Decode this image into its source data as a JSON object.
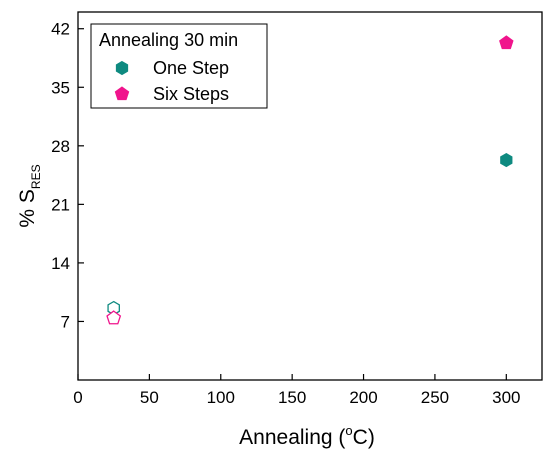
{
  "chart_data": {
    "type": "scatter",
    "title": "",
    "xlabel": {
      "prefix": "Annealing (",
      "sup": "o",
      "suffix": "C)"
    },
    "ylabel": {
      "prefix": "% S",
      "sub": "RES"
    },
    "xlim": [
      0,
      325
    ],
    "ylim": [
      0,
      44
    ],
    "xticks": [
      "0",
      "50",
      "100",
      "150",
      "200",
      "250",
      "300"
    ],
    "xtick_values": [
      0,
      50,
      100,
      150,
      200,
      250,
      300
    ],
    "yticks": [
      "7",
      "14",
      "21",
      "28",
      "35",
      "42"
    ],
    "ytick_values": [
      7,
      14,
      21,
      28,
      35,
      42
    ],
    "grid": false,
    "legend": {
      "title": "Annealing 30 min",
      "placement": "top-left"
    },
    "series": [
      {
        "name": "One Step",
        "color": "#0e8a80",
        "marker": "hexagon",
        "points": [
          {
            "x": 25,
            "y": 8.6,
            "filled": false
          },
          {
            "x": 300,
            "y": 26.3,
            "filled": true
          }
        ]
      },
      {
        "name": "Six Steps",
        "color": "#f0148c",
        "marker": "pentagon",
        "points": [
          {
            "x": 25,
            "y": 7.4,
            "filled": false
          },
          {
            "x": 300,
            "y": 40.3,
            "filled": true
          }
        ]
      }
    ]
  }
}
